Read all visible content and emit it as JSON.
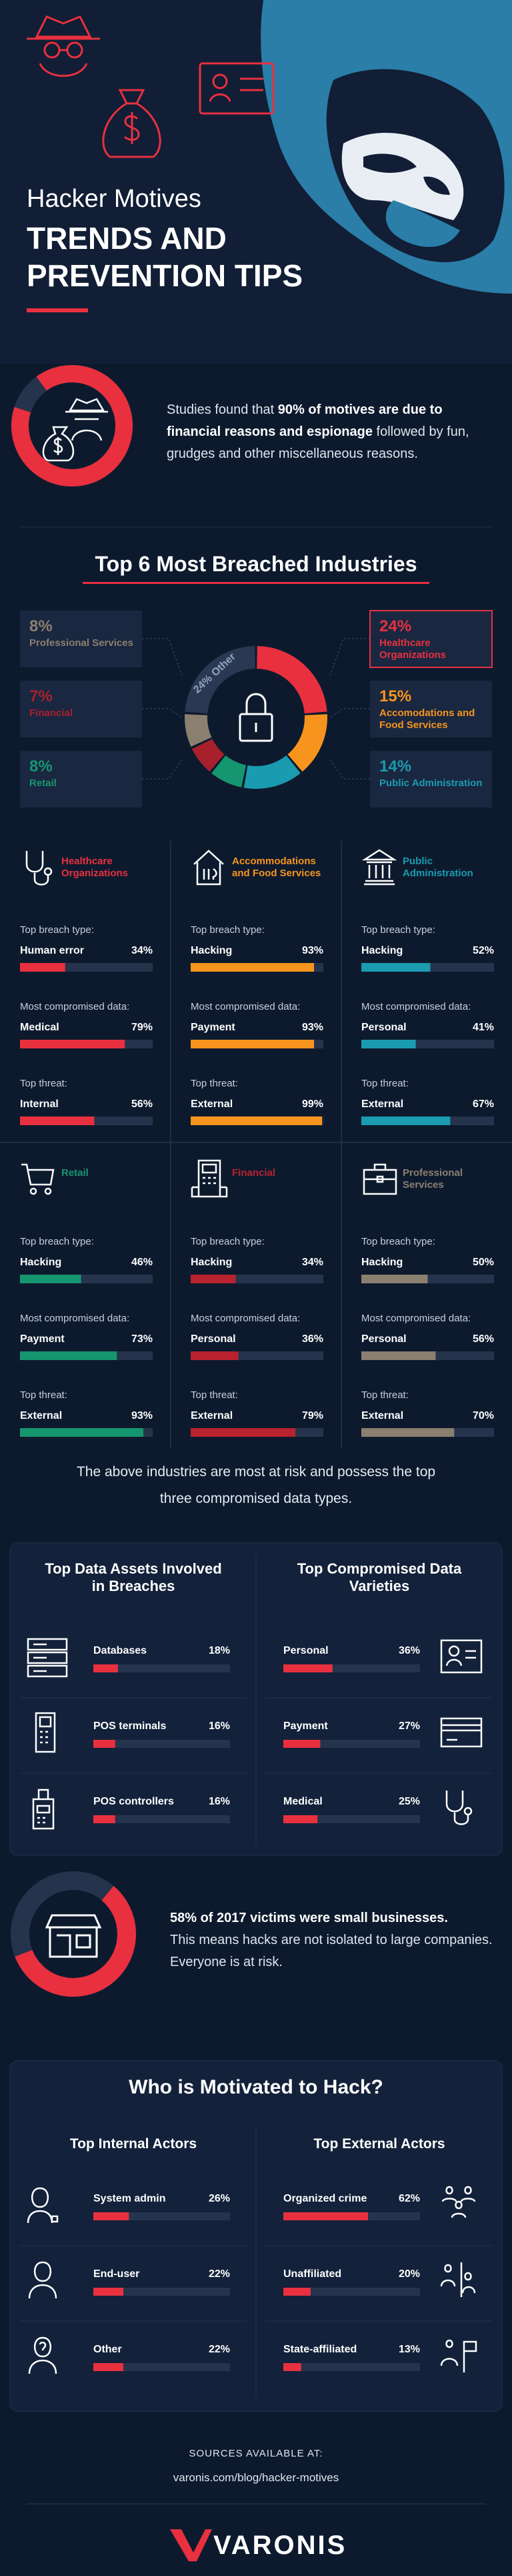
{
  "header": {
    "kicker": "Hacker Motives",
    "title_lines": [
      "TRENDS AND",
      "PREVENTION TIPS"
    ]
  },
  "motives": {
    "value": 90,
    "text": [
      "Studies found that ",
      "90% of motives are due to financial reasons and espionage",
      " followed by fun, grudges and other miscellaneous reasons."
    ]
  },
  "breached": {
    "title": "Top 6 Most Breached Industries",
    "segments": [
      {
        "name": "Healthcare Organizations",
        "value": 24,
        "value_label": "24%",
        "color": "#e8303f"
      },
      {
        "name": "Accomodations and Food Services",
        "value": 15,
        "value_label": "15%",
        "color": "#f7941d"
      },
      {
        "name": "Public Administration",
        "value": 14,
        "value_label": "14%",
        "color": "#1a9bb0"
      },
      {
        "name": "Retail",
        "value": 8,
        "value_label": "8%",
        "color": "#16966f"
      },
      {
        "name": "Financial",
        "value": 7,
        "value_label": "7%",
        "color": "#a8202c"
      },
      {
        "name": "Professional Services",
        "value": 8,
        "value_label": "8%",
        "color": "#8b7f70"
      },
      {
        "name": "Other",
        "value": 24,
        "value_label": "24%",
        "color": "#2a3853"
      }
    ]
  },
  "industries": {
    "row_labels": [
      "Top breach type:",
      "Most compromised data:",
      "Top threat:"
    ],
    "cards": [
      {
        "name": "Healthcare Organizations",
        "color": "#e8303f",
        "rows": [
          {
            "label": "Human error",
            "value": 34,
            "value_label": "34%"
          },
          {
            "label": "Medical",
            "value": 79,
            "value_label": "79%"
          },
          {
            "label": "Internal",
            "value": 56,
            "value_label": "56%"
          }
        ]
      },
      {
        "name": "Accommodations and Food Services",
        "color": "#f7941d",
        "rows": [
          {
            "label": "Hacking",
            "value": 93,
            "value_label": "93%"
          },
          {
            "label": "Payment",
            "value": 93,
            "value_label": "93%"
          },
          {
            "label": "External",
            "value": 99,
            "value_label": "99%"
          }
        ]
      },
      {
        "name": "Public Administration",
        "color": "#1a9bb0",
        "rows": [
          {
            "label": "Hacking",
            "value": 52,
            "value_label": "52%"
          },
          {
            "label": "Personal",
            "value": 41,
            "value_label": "41%"
          },
          {
            "label": "External",
            "value": 67,
            "value_label": "67%"
          }
        ]
      },
      {
        "name": "Retail",
        "color": "#16966f",
        "rows": [
          {
            "label": "Hacking",
            "value": 46,
            "value_label": "46%"
          },
          {
            "label": "Payment",
            "value": 73,
            "value_label": "73%"
          },
          {
            "label": "External",
            "value": 93,
            "value_label": "93%"
          }
        ]
      },
      {
        "name": "Financial",
        "color": "#b8232f",
        "rows": [
          {
            "label": "Hacking",
            "value": 34,
            "value_label": "34%"
          },
          {
            "label": "Personal",
            "value": 36,
            "value_label": "36%"
          },
          {
            "label": "External",
            "value": 79,
            "value_label": "79%"
          }
        ]
      },
      {
        "name": "Professional Services",
        "color": "#8b7f70",
        "rows": [
          {
            "label": "Hacking",
            "value": 50,
            "value_label": "50%"
          },
          {
            "label": "Personal",
            "value": 56,
            "value_label": "56%"
          },
          {
            "label": "External",
            "value": 70,
            "value_label": "70%"
          }
        ]
      }
    ]
  },
  "note": "The above industries are most at risk and possess the top three compromised data types.",
  "assets": {
    "columns": [
      {
        "title": "Top Data Assets Involved in Breaches",
        "items": [
          {
            "label": "Databases",
            "value": 18,
            "value_label": "18%"
          },
          {
            "label": "POS terminals",
            "value": 16,
            "value_label": "16%"
          },
          {
            "label": "POS controllers",
            "value": 16,
            "value_label": "16%"
          }
        ]
      },
      {
        "title": "Top Compromised Data Varieties",
        "items": [
          {
            "label": "Personal",
            "value": 36,
            "value_label": "36%"
          },
          {
            "label": "Payment",
            "value": 27,
            "value_label": "27%"
          },
          {
            "label": "Medical",
            "value": 25,
            "value_label": "25%"
          }
        ]
      }
    ]
  },
  "small_business": {
    "value": 58,
    "text": [
      "58% of 2017 victims were small businesses.",
      "This means hacks are not isolated to large companies. Everyone is at risk."
    ]
  },
  "actors": {
    "title": "Who is Motivated to Hack?",
    "columns": [
      {
        "title": "Top Internal Actors",
        "items": [
          {
            "label": "System admin",
            "value": 26,
            "value_label": "26%"
          },
          {
            "label": "End-user",
            "value": 22,
            "value_label": "22%"
          },
          {
            "label": "Other",
            "value": 22,
            "value_label": "22%"
          }
        ]
      },
      {
        "title": "Top External Actors",
        "items": [
          {
            "label": "Organized crime",
            "value": 62,
            "value_label": "62%"
          },
          {
            "label": "Unaffiliated",
            "value": 20,
            "value_label": "20%"
          },
          {
            "label": "State-affiliated",
            "value": 13,
            "value_label": "13%"
          }
        ]
      }
    ]
  },
  "footer": {
    "sources": "SOURCES AVAILABLE AT:",
    "url": "varonis.com/blog/hacker-motives",
    "logo": "VARONIS"
  }
}
